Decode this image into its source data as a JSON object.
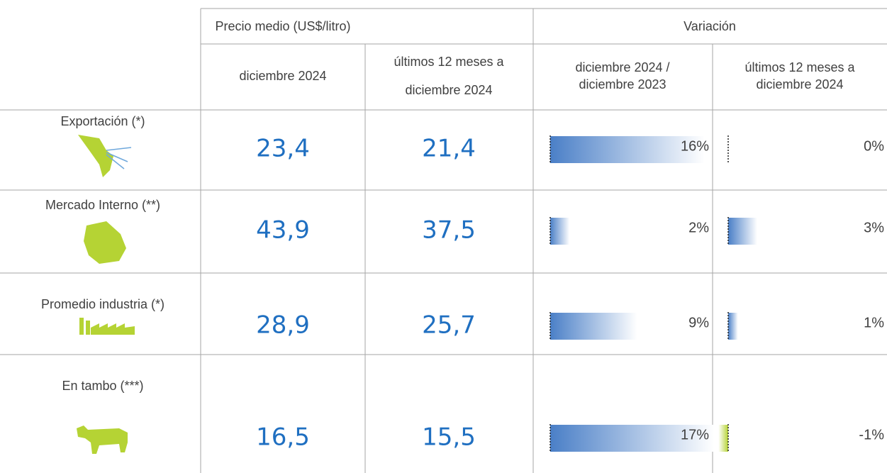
{
  "table": {
    "groups": [
      "Precio medio (US$/litro)",
      "Variación"
    ],
    "columns": [
      [
        "diciembre 2024"
      ],
      [
        "últimos 12 meses a",
        "diciembre 2024"
      ],
      [
        "diciembre 2024 /",
        "diciembre 2023"
      ],
      [
        "últimos 12 meses a",
        "diciembre 2024"
      ]
    ],
    "rows": [
      {
        "label": "Exportación (*)",
        "price_dec": "23,4",
        "price_12m": "21,4",
        "var_dec": {
          "value": 16,
          "label": "16%"
        },
        "var_12m": {
          "value": 0,
          "label": "0%"
        }
      },
      {
        "label": "Mercado Interno (**)",
        "price_dec": "43,9",
        "price_12m": "37,5",
        "var_dec": {
          "value": 2,
          "label": "2%"
        },
        "var_12m": {
          "value": 3,
          "label": "3%"
        }
      },
      {
        "label": "Promedio industria (*)",
        "price_dec": "28,9",
        "price_12m": "25,7",
        "var_dec": {
          "value": 9,
          "label": "9%"
        },
        "var_12m": {
          "value": 1,
          "label": "1%"
        }
      },
      {
        "label": "En tambo (***)",
        "price_dec": "16,5",
        "price_12m": "15,5",
        "var_dec": {
          "value": 17,
          "label": "17%"
        },
        "var_12m": {
          "value": -1,
          "label": "-1%"
        }
      }
    ]
  }
}
